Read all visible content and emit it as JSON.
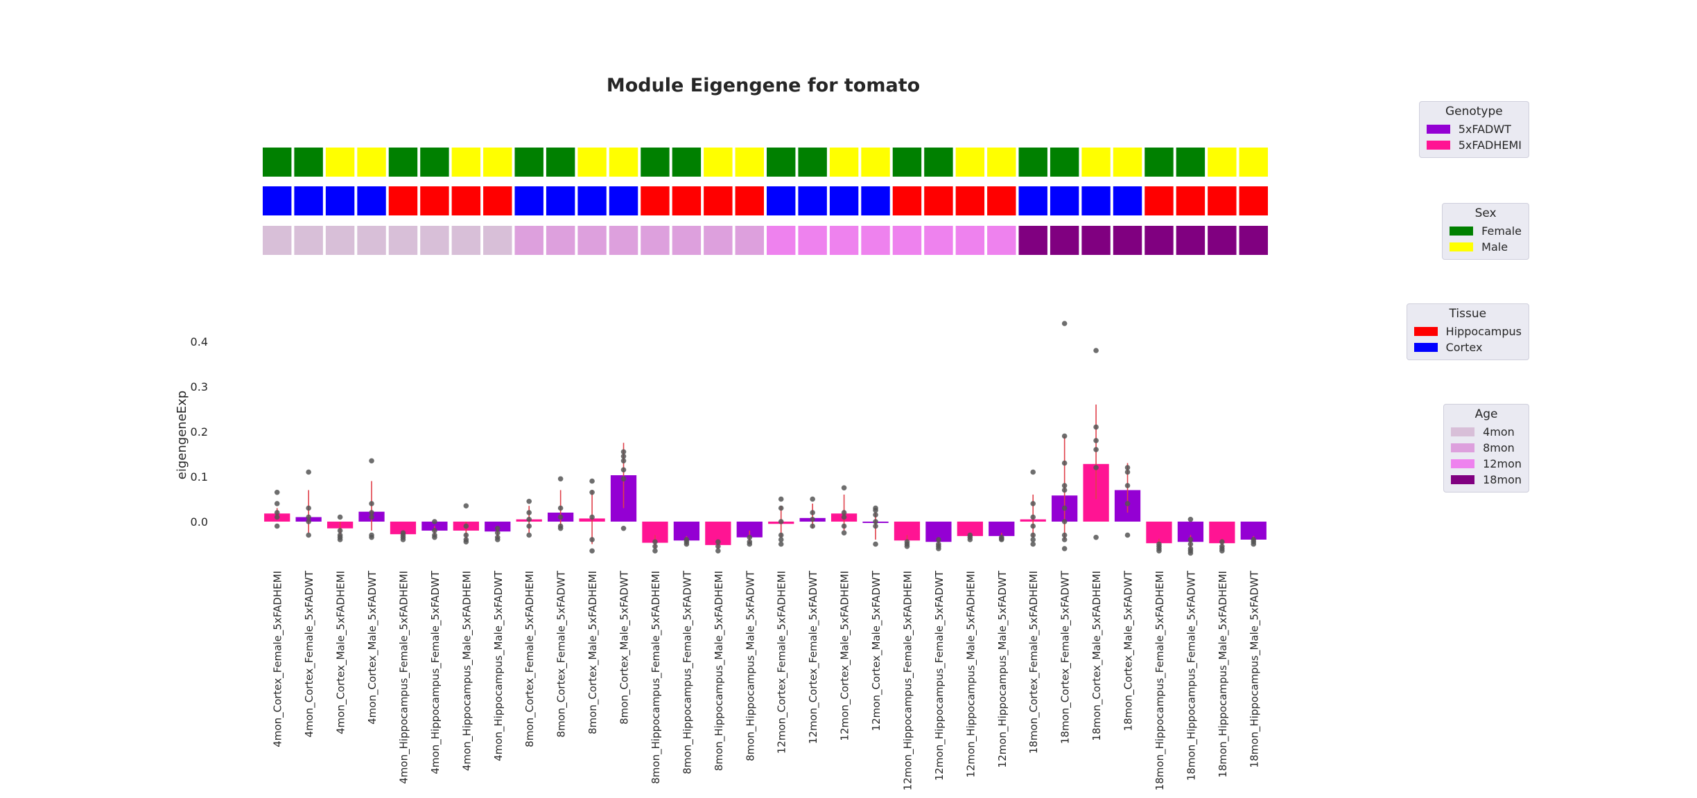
{
  "chart_data": {
    "type": "bar",
    "title": "Module Eigengene for tomato",
    "ylabel": "eigengeneExp",
    "xlabel": "",
    "ylim": [
      -0.1,
      0.47
    ],
    "yticks": [
      "0.0",
      "0.1",
      "0.2",
      "0.3",
      "0.4"
    ],
    "grid": false,
    "categories": [
      "4mon_Cortex_Female_5xFADHEMI",
      "4mon_Cortex_Female_5xFADWT",
      "4mon_Cortex_Male_5xFADHEMI",
      "4mon_Cortex_Male_5xFADWT",
      "4mon_Hippocampus_Female_5xFADHEMI",
      "4mon_Hippocampus_Female_5xFADWT",
      "4mon_Hippocampus_Male_5xFADHEMI",
      "4mon_Hippocampus_Male_5xFADWT",
      "8mon_Cortex_Female_5xFADHEMI",
      "8mon_Cortex_Female_5xFADWT",
      "8mon_Cortex_Male_5xFADHEMI",
      "8mon_Cortex_Male_5xFADWT",
      "8mon_Hippocampus_Female_5xFADHEMI",
      "8mon_Hippocampus_Female_5xFADWT",
      "8mon_Hippocampus_Male_5xFADHEMI",
      "8mon_Hippocampus_Male_5xFADWT",
      "12mon_Cortex_Female_5xFADHEMI",
      "12mon_Cortex_Female_5xFADWT",
      "12mon_Cortex_Male_5xFADHEMI",
      "12mon_Cortex_Male_5xFADWT",
      "12mon_Hippocampus_Female_5xFADHEMI",
      "12mon_Hippocampus_Female_5xFADWT",
      "12mon_Hippocampus_Male_5xFADHEMI",
      "12mon_Hippocampus_Male_5xFADWT",
      "18mon_Cortex_Female_5xFADHEMI",
      "18mon_Cortex_Female_5xFADWT",
      "18mon_Cortex_Male_5xFADHEMI",
      "18mon_Cortex_Male_5xFADWT",
      "18mon_Hippocampus_Female_5xFADHEMI",
      "18mon_Hippocampus_Female_5xFADWT",
      "18mon_Hippocampus_Male_5xFADHEMI",
      "18mon_Hippocampus_Male_5xFADWT"
    ],
    "values": [
      0.018,
      0.01,
      -0.015,
      0.022,
      -0.028,
      -0.02,
      -0.02,
      -0.022,
      0.005,
      0.02,
      0.007,
      0.103,
      -0.047,
      -0.042,
      -0.052,
      -0.035,
      -0.005,
      0.008,
      0.018,
      -0.003,
      -0.042,
      -0.045,
      -0.032,
      -0.032,
      0.005,
      0.058,
      0.128,
      0.07,
      -0.048,
      -0.045,
      -0.048,
      -0.04
    ],
    "error_bars": [
      [
        0.005,
        0.03
      ],
      [
        -0.025,
        0.07
      ],
      [
        -0.03,
        0.0
      ],
      [
        -0.02,
        0.09
      ],
      [
        -0.035,
        -0.02
      ],
      [
        -0.03,
        -0.01
      ],
      [
        -0.04,
        0.0
      ],
      [
        -0.035,
        -0.012
      ],
      [
        -0.025,
        0.035
      ],
      [
        -0.01,
        0.07
      ],
      [
        -0.05,
        0.07
      ],
      [
        0.03,
        0.175
      ],
      [
        -0.06,
        -0.03
      ],
      [
        -0.052,
        -0.032
      ],
      [
        -0.06,
        -0.04
      ],
      [
        -0.048,
        -0.02
      ],
      [
        -0.035,
        0.035
      ],
      [
        -0.015,
        0.04
      ],
      [
        -0.02,
        0.06
      ],
      [
        -0.04,
        0.02
      ],
      [
        -0.052,
        -0.03
      ],
      [
        -0.055,
        -0.035
      ],
      [
        -0.038,
        -0.025
      ],
      [
        -0.038,
        -0.025
      ],
      [
        -0.035,
        0.06
      ],
      [
        -0.04,
        0.19
      ],
      [
        0.05,
        0.26
      ],
      [
        0.02,
        0.13
      ],
      [
        -0.058,
        -0.038
      ],
      [
        -0.06,
        -0.03
      ],
      [
        -0.058,
        -0.038
      ],
      [
        -0.048,
        -0.032
      ]
    ],
    "points": [
      [
        0.065,
        0.04,
        0.02,
        0.01,
        -0.01
      ],
      [
        0.11,
        0.03,
        0.01,
        0.0,
        -0.03
      ],
      [
        0.01,
        -0.02,
        -0.03,
        -0.035,
        -0.04
      ],
      [
        0.135,
        0.04,
        0.02,
        0.01,
        -0.03,
        -0.035
      ],
      [
        -0.025,
        -0.03,
        -0.035,
        -0.04
      ],
      [
        0.0,
        -0.02,
        -0.03,
        -0.035
      ],
      [
        0.035,
        -0.01,
        -0.03,
        -0.04,
        -0.045
      ],
      [
        -0.015,
        -0.025,
        -0.035,
        -0.04
      ],
      [
        0.045,
        0.02,
        0.005,
        -0.01,
        -0.03
      ],
      [
        0.095,
        0.03,
        0.01,
        -0.01,
        -0.015
      ],
      [
        0.09,
        0.065,
        0.01,
        -0.04,
        -0.065
      ],
      [
        0.155,
        0.145,
        0.135,
        0.115,
        0.095,
        -0.015
      ],
      [
        -0.045,
        -0.055,
        -0.065
      ],
      [
        -0.04,
        -0.045,
        -0.05
      ],
      [
        -0.045,
        -0.055,
        -0.065
      ],
      [
        -0.035,
        -0.045,
        -0.05
      ],
      [
        0.05,
        0.03,
        0.0,
        -0.03,
        -0.04,
        -0.05
      ],
      [
        0.05,
        0.02,
        0.005,
        -0.01
      ],
      [
        0.075,
        0.02,
        0.01,
        -0.01,
        -0.025
      ],
      [
        0.03,
        0.025,
        0.015,
        0.0,
        -0.01,
        -0.05
      ],
      [
        -0.045,
        -0.05,
        -0.055
      ],
      [
        -0.04,
        -0.05,
        -0.055,
        -0.06
      ],
      [
        -0.03,
        -0.035,
        -0.04
      ],
      [
        -0.035,
        -0.038,
        -0.04
      ],
      [
        0.11,
        0.04,
        0.01,
        -0.01,
        -0.03,
        -0.04,
        -0.05
      ],
      [
        0.44,
        0.19,
        0.13,
        0.08,
        0.07,
        0.03,
        0.0,
        -0.03,
        -0.04,
        -0.06
      ],
      [
        0.38,
        0.21,
        0.18,
        0.16,
        0.12,
        -0.035
      ],
      [
        0.12,
        0.11,
        0.08,
        0.04,
        -0.03
      ],
      [
        -0.05,
        -0.055,
        -0.06,
        -0.065
      ],
      [
        0.005,
        -0.04,
        -0.05,
        -0.06,
        -0.065,
        -0.07
      ],
      [
        -0.045,
        -0.055,
        -0.06,
        -0.065
      ],
      [
        -0.04,
        -0.045,
        -0.05
      ]
    ],
    "genotype": [
      "5xFADHEMI",
      "5xFADWT",
      "5xFADHEMI",
      "5xFADWT",
      "5xFADHEMI",
      "5xFADWT",
      "5xFADHEMI",
      "5xFADWT",
      "5xFADHEMI",
      "5xFADWT",
      "5xFADHEMI",
      "5xFADWT",
      "5xFADHEMI",
      "5xFADWT",
      "5xFADHEMI",
      "5xFADWT",
      "5xFADHEMI",
      "5xFADWT",
      "5xFADHEMI",
      "5xFADWT",
      "5xFADHEMI",
      "5xFADWT",
      "5xFADHEMI",
      "5xFADWT",
      "5xFADHEMI",
      "5xFADWT",
      "5xFADHEMI",
      "5xFADWT",
      "5xFADHEMI",
      "5xFADWT",
      "5xFADHEMI",
      "5xFADWT"
    ],
    "annotation_rows": [
      {
        "key": "sex",
        "cells": [
          "Female",
          "Female",
          "Male",
          "Male",
          "Female",
          "Female",
          "Male",
          "Male",
          "Female",
          "Female",
          "Male",
          "Male",
          "Female",
          "Female",
          "Male",
          "Male",
          "Female",
          "Female",
          "Male",
          "Male",
          "Female",
          "Female",
          "Male",
          "Male",
          "Female",
          "Female",
          "Male",
          "Male",
          "Female",
          "Female",
          "Male",
          "Male"
        ]
      },
      {
        "key": "tissue",
        "cells": [
          "Cortex",
          "Cortex",
          "Cortex",
          "Cortex",
          "Hippocampus",
          "Hippocampus",
          "Hippocampus",
          "Hippocampus",
          "Cortex",
          "Cortex",
          "Cortex",
          "Cortex",
          "Hippocampus",
          "Hippocampus",
          "Hippocampus",
          "Hippocampus",
          "Cortex",
          "Cortex",
          "Cortex",
          "Cortex",
          "Hippocampus",
          "Hippocampus",
          "Hippocampus",
          "Hippocampus",
          "Cortex",
          "Cortex",
          "Cortex",
          "Cortex",
          "Hippocampus",
          "Hippocampus",
          "Hippocampus",
          "Hippocampus"
        ]
      },
      {
        "key": "age",
        "cells": [
          "4mon",
          "4mon",
          "4mon",
          "4mon",
          "4mon",
          "4mon",
          "4mon",
          "4mon",
          "8mon",
          "8mon",
          "8mon",
          "8mon",
          "8mon",
          "8mon",
          "8mon",
          "8mon",
          "12mon",
          "12mon",
          "12mon",
          "12mon",
          "12mon",
          "12mon",
          "12mon",
          "12mon",
          "18mon",
          "18mon",
          "18mon",
          "18mon",
          "18mon",
          "18mon",
          "18mon",
          "18mon"
        ]
      }
    ],
    "colors": {
      "genotype": {
        "5xFADWT": "#9400d3",
        "5xFADHEMI": "#ff1493"
      },
      "sex": {
        "Female": "#008000",
        "Male": "#ffff00"
      },
      "tissue": {
        "Hippocampus": "#ff0000",
        "Cortex": "#0000ff"
      },
      "age": {
        "4mon": "#d8bfd8",
        "8mon": "#dda0dd",
        "12mon": "#ee82ee",
        "18mon": "#800080"
      },
      "error_bar": "#e0404a",
      "point": "#555555"
    },
    "legends": [
      {
        "title": "Genotype",
        "items": [
          {
            "label": "5xFADWT",
            "color": "#9400d3"
          },
          {
            "label": "5xFADHEMI",
            "color": "#ff1493"
          }
        ]
      },
      {
        "title": "Sex",
        "items": [
          {
            "label": "Female",
            "color": "#008000"
          },
          {
            "label": "Male",
            "color": "#ffff00"
          }
        ]
      },
      {
        "title": "Tissue",
        "items": [
          {
            "label": "Hippocampus",
            "color": "#ff0000"
          },
          {
            "label": "Cortex",
            "color": "#0000ff"
          }
        ]
      },
      {
        "title": "Age",
        "items": [
          {
            "label": "4mon",
            "color": "#d8bfd8"
          },
          {
            "label": "8mon",
            "color": "#dda0dd"
          },
          {
            "label": "12mon",
            "color": "#ee82ee"
          },
          {
            "label": "18mon",
            "color": "#800080"
          }
        ]
      }
    ],
    "legend_placement": "right"
  }
}
